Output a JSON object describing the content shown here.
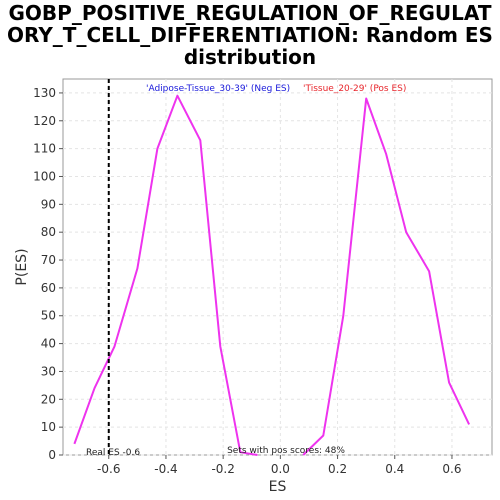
{
  "chart_data": {
    "type": "line",
    "title_lines": [
      "GOBP_POSITIVE_REGULATION_OF_REGULAT",
      "ORY_T_CELL_DIFFERENTIATION: Random ES",
      "distribution"
    ],
    "xlabel": "ES",
    "ylabel": "P(ES)",
    "xlim": [
      -0.76,
      0.74
    ],
    "ylim": [
      0,
      135
    ],
    "x_ticks": [
      -0.6,
      -0.4,
      -0.2,
      0.0,
      0.2,
      0.4,
      0.6
    ],
    "x_tick_labels": [
      "-0.6",
      "-0.4",
      "-0.2",
      "0.0",
      "0.2",
      "0.4",
      "0.6"
    ],
    "y_ticks": [
      0,
      10,
      20,
      30,
      40,
      50,
      60,
      70,
      80,
      90,
      100,
      110,
      120,
      130
    ],
    "grid": true,
    "series": [
      {
        "name": "'Adipose-Tissue_30-39' (Neg ES)",
        "color": "#ee33ee",
        "x": [
          -0.72,
          -0.65,
          -0.58,
          -0.5,
          -0.43,
          -0.36,
          -0.28,
          -0.21,
          -0.14,
          -0.08
        ],
        "y": [
          4,
          24,
          39,
          67,
          110,
          129,
          113,
          39,
          1,
          0
        ]
      },
      {
        "name": "'Tissue_20-29' (Pos ES)",
        "color": "#ee33ee",
        "x": [
          0.08,
          0.15,
          0.22,
          0.3,
          0.37,
          0.44,
          0.52,
          0.59,
          0.66
        ],
        "y": [
          0,
          7,
          50,
          128,
          108,
          80,
          66,
          26,
          11
        ]
      }
    ],
    "legend": [
      {
        "text": "'Adipose-Tissue_30-39' (Neg ES)",
        "color": "#1a1adb"
      },
      {
        "text": "'Tissue_20-29' (Pos ES)",
        "color": "#e8262c"
      }
    ],
    "real_es": {
      "value": -0.6,
      "label": "Real ES -0.6"
    },
    "annotation": "Sets with pos scores: 48%"
  }
}
